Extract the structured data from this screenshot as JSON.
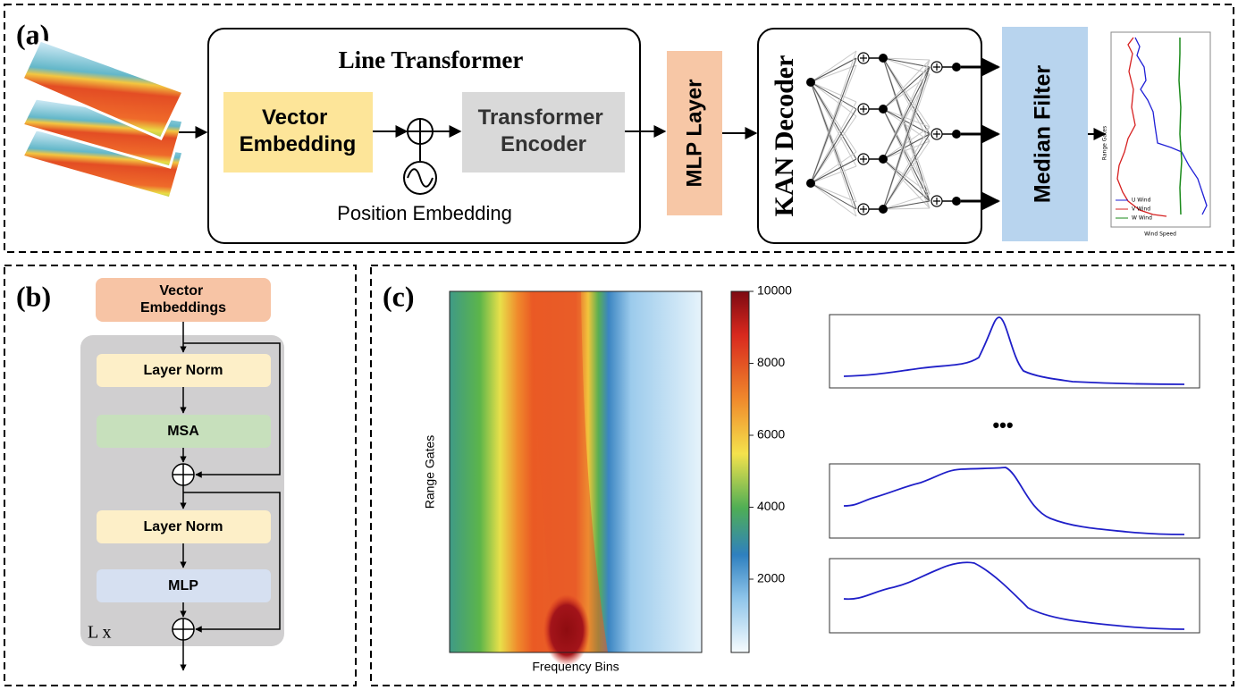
{
  "panels": {
    "a": {
      "label": "(a)",
      "line_transformer": {
        "title": "Line Transformer",
        "vector_embedding": [
          "Vector",
          "Embedding"
        ],
        "transformer_encoder": [
          "Transformer",
          "Encoder"
        ],
        "position_embedding": "Position Embedding"
      },
      "mlp_layer": "MLP Layer",
      "kan_decoder": "KAN Decoder",
      "median_filter": "Median Filter",
      "wind_plot": {
        "ylabel": "Range Gates",
        "xlabel": "Wind Speed",
        "legend": [
          "U Wind",
          "V Wind",
          "W Wind"
        ]
      }
    },
    "b": {
      "label": "(b)",
      "input": [
        "Vector",
        "Embeddings"
      ],
      "blocks": [
        "Layer Norm",
        "MSA",
        "Layer Norm",
        "MLP"
      ],
      "repeat": "L x"
    },
    "c": {
      "label": "(c)",
      "heatmap": {
        "ylabel": "Range Gates",
        "xlabel": "Frequency Bins",
        "colorbar_ticks": [
          2000,
          4000,
          6000,
          8000,
          10000
        ]
      },
      "ellipsis": "•••"
    }
  }
}
